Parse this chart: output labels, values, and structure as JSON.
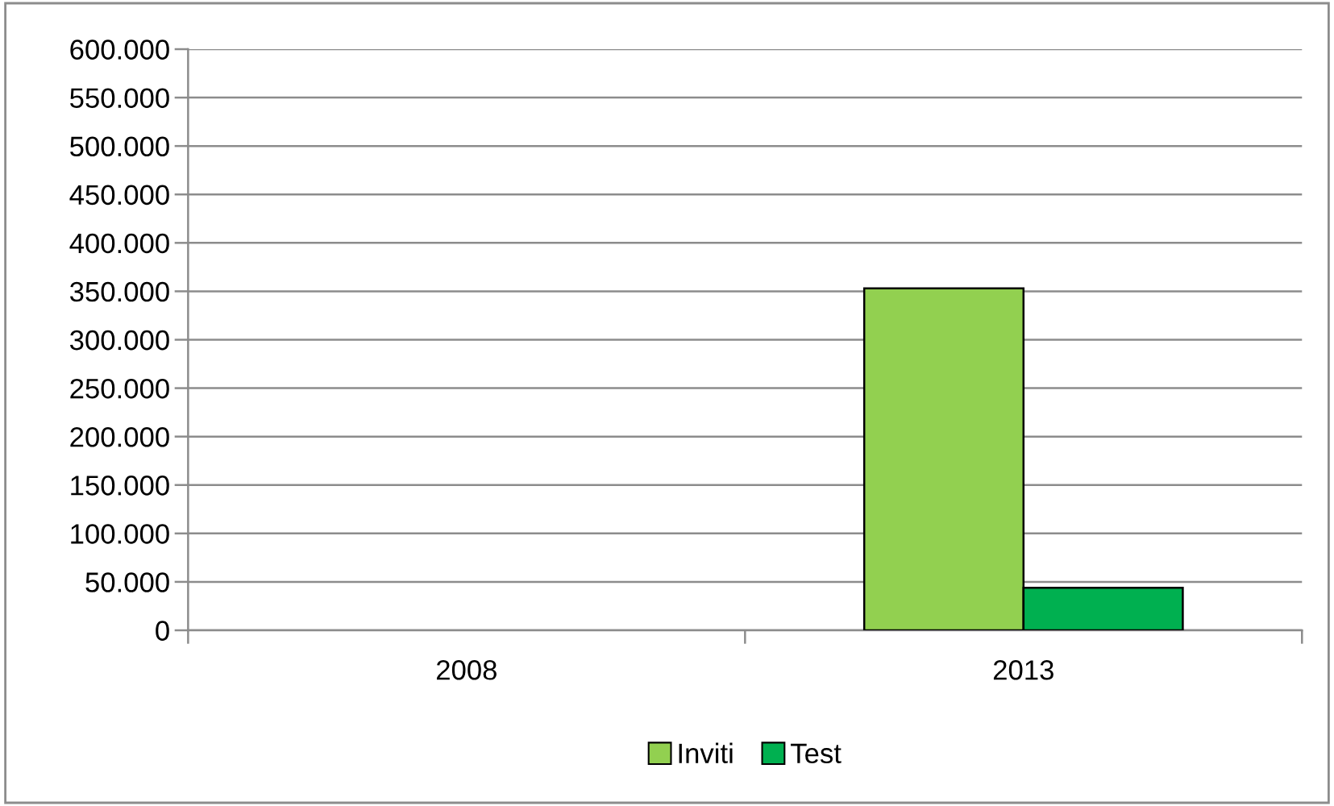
{
  "chart_data": {
    "type": "bar",
    "categories": [
      "2008",
      "2013"
    ],
    "series": [
      {
        "name": "Inviti",
        "color": "#92d050",
        "values": [
          null,
          353000
        ]
      },
      {
        "name": "Test",
        "color": "#00b050",
        "values": [
          null,
          44000
        ]
      }
    ],
    "ylim": [
      0,
      600000
    ],
    "yticks": [
      {
        "value": 0,
        "label": "0"
      },
      {
        "value": 50000,
        "label": "50.000"
      },
      {
        "value": 100000,
        "label": "100.000"
      },
      {
        "value": 150000,
        "label": "150.000"
      },
      {
        "value": 200000,
        "label": "200.000"
      },
      {
        "value": 250000,
        "label": "250.000"
      },
      {
        "value": 300000,
        "label": "300.000"
      },
      {
        "value": 350000,
        "label": "350.000"
      },
      {
        "value": 400000,
        "label": "400.000"
      },
      {
        "value": 450000,
        "label": "450.000"
      },
      {
        "value": 500000,
        "label": "500.000"
      },
      {
        "value": 550000,
        "label": "550.000"
      },
      {
        "value": 600000,
        "label": "600.000"
      }
    ],
    "grid": "y",
    "legend": "bottom"
  }
}
